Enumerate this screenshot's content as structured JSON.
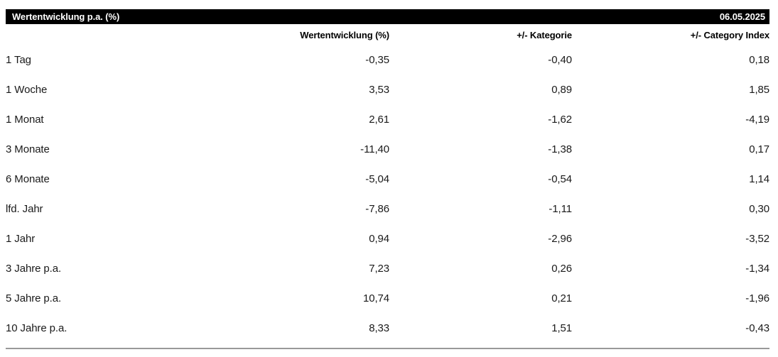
{
  "header": {
    "title": "Wertentwicklung p.a. (%)",
    "date": "06.05.2025"
  },
  "table": {
    "columns": {
      "period": "",
      "wertentwicklung": "Wertentwicklung (%)",
      "kategorie": "+/- Kategorie",
      "category_index": "+/- Category Index"
    },
    "rows": [
      {
        "label": "1 Tag",
        "wertentwicklung": "-0,35",
        "kategorie": "-0,40",
        "category_index": "0,18"
      },
      {
        "label": "1 Woche",
        "wertentwicklung": "3,53",
        "kategorie": "0,89",
        "category_index": "1,85"
      },
      {
        "label": "1 Monat",
        "wertentwicklung": "2,61",
        "kategorie": "-1,62",
        "category_index": "-4,19"
      },
      {
        "label": "3 Monate",
        "wertentwicklung": "-11,40",
        "kategorie": "-1,38",
        "category_index": "0,17"
      },
      {
        "label": "6 Monate",
        "wertentwicklung": "-5,04",
        "kategorie": "-0,54",
        "category_index": "1,14"
      },
      {
        "label": "lfd. Jahr",
        "wertentwicklung": "-7,86",
        "kategorie": "-1,11",
        "category_index": "0,30"
      },
      {
        "label": "1 Jahr",
        "wertentwicklung": "0,94",
        "kategorie": "-2,96",
        "category_index": "-3,52"
      },
      {
        "label": "3 Jahre p.a.",
        "wertentwicklung": "7,23",
        "kategorie": "0,26",
        "category_index": "-1,34"
      },
      {
        "label": "5 Jahre p.a.",
        "wertentwicklung": "10,74",
        "kategorie": "0,21",
        "category_index": "-1,96"
      },
      {
        "label": "10 Jahre p.a.",
        "wertentwicklung": "8,33",
        "kategorie": "1,51",
        "category_index": "-0,43"
      }
    ]
  },
  "colors": {
    "title_bar_bg": "#000000",
    "title_bar_text": "#ffffff",
    "body_text": "#1a1a1a",
    "bottom_rule": "#999999"
  }
}
